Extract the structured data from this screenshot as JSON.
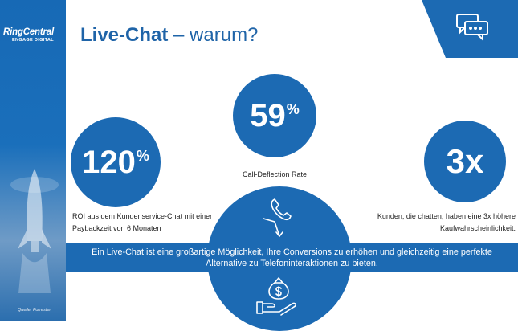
{
  "brand": {
    "name": "RingCentral",
    "tagline": "ENGAGE DIGITAL"
  },
  "title": {
    "bold": "Live-Chat",
    "rest": " – warum?"
  },
  "stats": [
    {
      "value": "59",
      "unit": "%",
      "label": "Call-Deflection Rate"
    },
    {
      "value": "120",
      "unit": "%",
      "label": "ROI aus dem Kundenservice-Chat mit einer Paybackzeit von 6 Monaten"
    },
    {
      "value": "3x",
      "unit": "",
      "label": "Kunden, die chatten, haben eine 3x höhere Kaufwahrscheinlichkeit."
    }
  ],
  "banner": "Ein Live-Chat ist eine großartige Möglichkeit, Ihre Conversions zu erhöhen und gleichzeitig eine perfekte Alternative zu Telefoninteraktionen zu bieten.",
  "source": "Quelle: Forrester",
  "colors": {
    "primary": "#1c6ab3",
    "title": "#1f64a8"
  },
  "icons": [
    "chat-bubbles-icon",
    "phone-deflect-icon",
    "money-bag-hand-icon",
    "rocket-illustration"
  ]
}
